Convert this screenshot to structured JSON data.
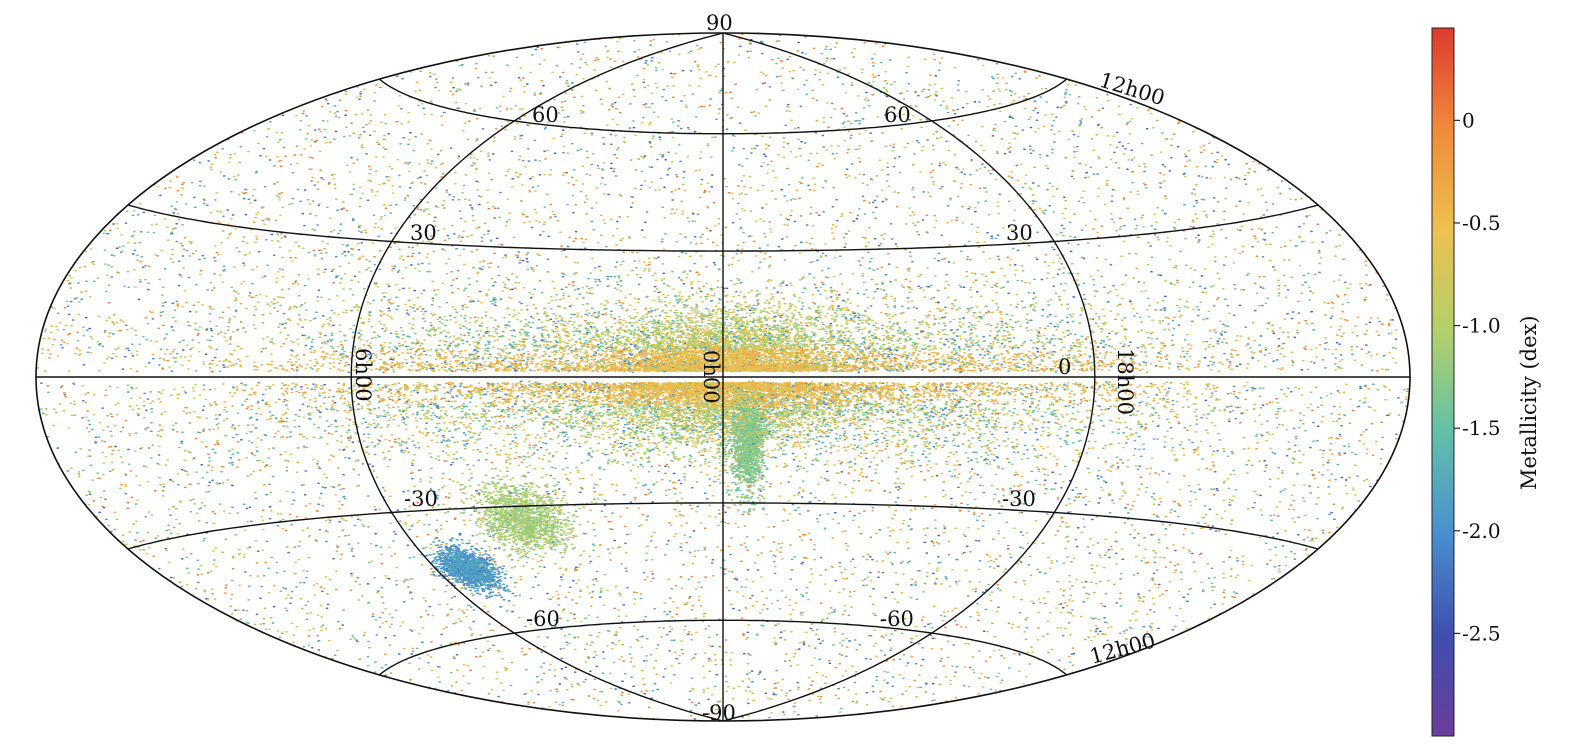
{
  "chart_data": {
    "type": "scatter",
    "projection": "Aitoff/Hammer all-sky (Galactic coordinates)",
    "grid": true,
    "latitude_labels_upper": [
      "90",
      "60",
      "60",
      "30",
      "30",
      "0"
    ],
    "latitude_labels_lower": [
      "-30",
      "-30",
      "-60",
      "-60",
      "-90"
    ],
    "meridian_labels": [
      "6h00",
      "0h00",
      "18h00"
    ],
    "edge_labels": [
      "12h00",
      "12h00"
    ],
    "colorbar": {
      "label": "Metallicity  (dex)",
      "range": [
        -3.0,
        0.45
      ],
      "ticks": [
        "0",
        "-0.5",
        "-1.0",
        "-1.5",
        "-2.0",
        "-2.5"
      ],
      "tick_values": [
        0,
        -0.5,
        -1.0,
        -1.5,
        -2.0,
        -2.5
      ],
      "colormap": [
        "#6b3d9a",
        "#3f4fb0",
        "#4a8fd0",
        "#61c0a8",
        "#b3d06a",
        "#ecc14f",
        "#f08a3a",
        "#de3a30"
      ]
    },
    "overdensities": [
      {
        "center": [
          -55,
          -33
        ],
        "spread": [
          6,
          4
        ],
        "metallicity": -1.1,
        "name_shown": false
      },
      {
        "center": [
          -80,
          -44
        ],
        "spread": [
          4,
          2.5
        ],
        "metallicity": -1.9,
        "name_shown": false
      },
      {
        "center": [
          6,
          -15
        ],
        "spread": [
          2,
          6
        ],
        "metallicity": -1.3,
        "name_shown": false
      }
    ]
  }
}
